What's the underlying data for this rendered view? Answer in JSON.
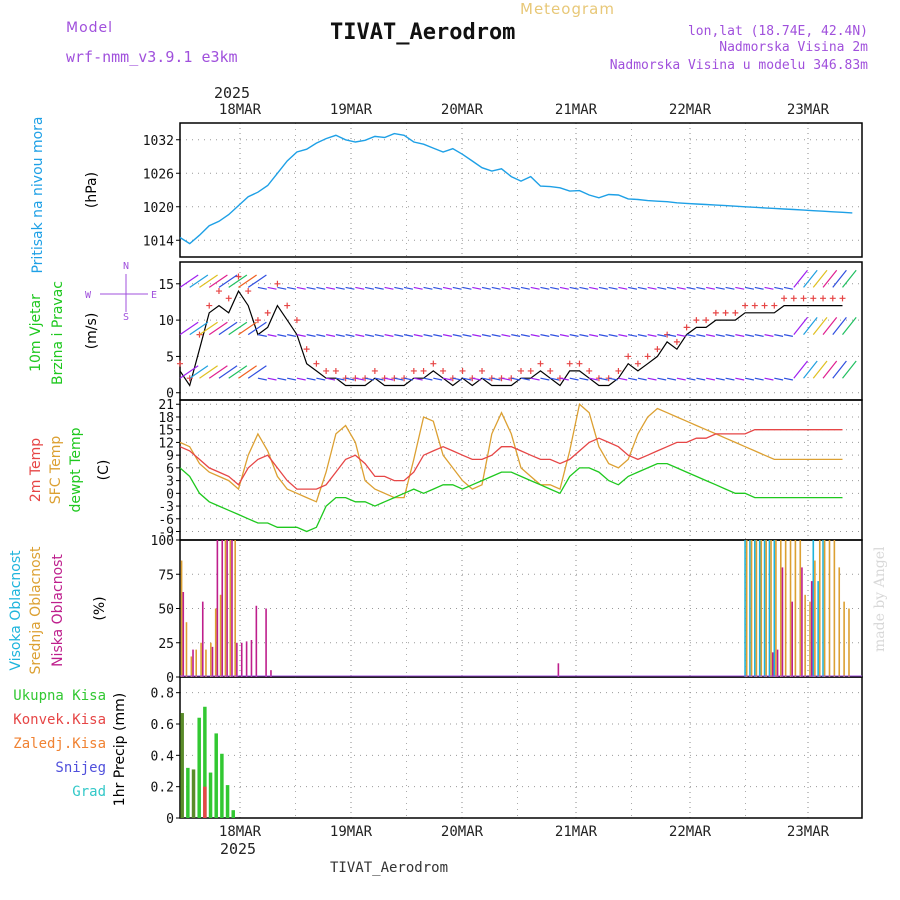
{
  "header": {
    "model_label": "Model",
    "model_name": "wrf-nmm_v3.9.1  e3km",
    "title": "TIVAT_Aerodrom",
    "subtitle": "Meteogram",
    "lonlat": "lon,lat (18.74E, 42.4N)",
    "altitude": "Nadmorska Visina 2m",
    "model_altitude": "Nadmorska Visina u modelu 346.83m",
    "footer_station": "TIVAT_Aerodrom",
    "credit": "made by Angel"
  },
  "colors": {
    "pressure": "#1ea0e6",
    "wind_black": "#000000",
    "gust": "#e64646",
    "t2m": "#e64646",
    "sfc": "#dca032",
    "dewpt": "#1ec81e",
    "cloud_high": "#1eb4dc",
    "cloud_mid": "#dca032",
    "cloud_low": "#be1e8c",
    "precip_total": "#32c832",
    "precip_conv": "#e64646",
    "precip_frozen": "#f08232",
    "snow": "#5050dc",
    "hail": "#32c8c8",
    "model_text": "#a050dc"
  },
  "chart_data": [
    {
      "type": "line",
      "id": "pressure",
      "ylabel_side": "Pritisak na nivou mora",
      "unit": "(hPa)",
      "ylim": [
        1011,
        1035
      ],
      "yticks": [
        1014,
        1020,
        1026,
        1032
      ],
      "x": [
        0,
        2,
        4,
        6,
        8,
        10,
        12,
        14,
        16,
        18,
        20,
        22,
        24,
        26,
        28,
        30,
        32,
        34,
        36,
        38,
        40,
        42,
        44,
        46,
        48,
        50,
        52,
        54,
        56,
        58,
        60,
        62,
        64,
        66,
        68,
        70,
        72,
        74,
        76,
        78,
        80,
        82,
        84,
        86,
        88,
        90,
        92,
        94,
        96,
        98,
        100,
        102,
        104,
        106,
        108,
        110,
        112,
        114,
        116,
        118,
        120,
        122,
        124,
        126,
        128,
        130,
        132,
        134,
        136,
        138
      ],
      "values": [
        1014.5,
        1013.4,
        1014.9,
        1016.6,
        1017.4,
        1018.6,
        1020.2,
        1021.8,
        1022.6,
        1023.8,
        1026.0,
        1028.2,
        1029.8,
        1030.3,
        1031.4,
        1032.2,
        1032.8,
        1032.0,
        1031.6,
        1031.9,
        1032.6,
        1032.4,
        1033.1,
        1032.8,
        1031.6,
        1031.2,
        1030.5,
        1029.8,
        1030.4,
        1029.4,
        1028.2,
        1027.0,
        1026.4,
        1026.8,
        1025.4,
        1024.6,
        1025.4,
        1023.7,
        1023.6,
        1023.4,
        1022.8,
        1022.9,
        1022.1,
        1021.6,
        1022.2,
        1022.1,
        1021.4,
        1021.3,
        1021.1,
        1021.0,
        1020.9,
        1020.7,
        1020.6,
        1020.5,
        1020.4,
        1020.3,
        1020.2,
        1020.1,
        1020.0,
        1019.9,
        1019.8,
        1019.7,
        1019.6,
        1019.5,
        1019.4,
        1019.3,
        1019.2,
        1019.1,
        1019.0,
        1018.9
      ]
    },
    {
      "type": "line",
      "id": "wind",
      "ylabel_side": [
        "10m Vjetar",
        "Brzina i Pravac"
      ],
      "unit": "(m/s)",
      "compass": [
        "N",
        "S",
        "W",
        "E"
      ],
      "ylim": [
        -1,
        18
      ],
      "yticks": [
        0,
        5,
        10,
        15
      ],
      "x": [
        0,
        2,
        4,
        6,
        8,
        10,
        12,
        14,
        16,
        18,
        20,
        22,
        24,
        26,
        28,
        30,
        32,
        34,
        36,
        38,
        40,
        42,
        44,
        46,
        48,
        50,
        52,
        54,
        56,
        58,
        60,
        62,
        64,
        66,
        68,
        70,
        72,
        74,
        76,
        78,
        80,
        82,
        84,
        86,
        88,
        90,
        92,
        94,
        96,
        98,
        100,
        102,
        104,
        106,
        108,
        110,
        112,
        114,
        116,
        118,
        120,
        122,
        124,
        126,
        128,
        130,
        132,
        134,
        136
      ],
      "series": [
        {
          "name": "speed",
          "values": [
            3,
            1,
            6,
            11,
            12,
            11,
            14,
            12,
            8,
            9,
            12,
            10,
            8,
            4,
            3,
            2,
            2,
            1,
            1,
            1,
            2,
            1,
            1,
            1,
            2,
            2,
            3,
            2,
            1,
            2,
            1,
            2,
            1,
            1,
            1,
            2,
            2,
            3,
            2,
            1,
            3,
            3,
            2,
            1,
            1,
            2,
            4,
            3,
            4,
            5,
            7,
            6,
            8,
            9,
            9,
            10,
            10,
            10,
            11,
            11,
            11,
            11,
            12,
            12,
            12,
            12,
            12,
            12,
            12
          ]
        },
        {
          "name": "gust",
          "values": [
            4,
            2,
            8,
            12,
            14,
            13,
            16,
            14,
            10,
            11,
            15,
            12,
            10,
            6,
            4,
            3,
            3,
            2,
            2,
            2,
            3,
            2,
            2,
            2,
            3,
            3,
            4,
            3,
            2,
            3,
            2,
            3,
            2,
            2,
            2,
            3,
            3,
            4,
            3,
            2,
            4,
            4,
            3,
            2,
            2,
            3,
            5,
            4,
            5,
            6,
            8,
            7,
            9,
            10,
            10,
            11,
            11,
            11,
            12,
            12,
            12,
            12,
            13,
            13,
            13,
            13,
            13,
            13,
            13
          ]
        }
      ],
      "barb_levels": [
        2,
        8,
        14.5
      ]
    },
    {
      "type": "line",
      "id": "temperature",
      "ylabel_side": [
        "2m Temp",
        "SFC Temp",
        "dewpt Temp"
      ],
      "unit": "(C)",
      "ylim": [
        -11,
        22
      ],
      "yticks": [
        -9,
        -6,
        -3,
        0,
        3,
        6,
        9,
        12,
        15,
        18,
        21
      ],
      "x": [
        0,
        2,
        4,
        6,
        8,
        10,
        12,
        14,
        16,
        18,
        20,
        22,
        24,
        26,
        28,
        30,
        32,
        34,
        36,
        38,
        40,
        42,
        44,
        46,
        48,
        50,
        52,
        54,
        56,
        58,
        60,
        62,
        64,
        66,
        68,
        70,
        72,
        74,
        76,
        78,
        80,
        82,
        84,
        86,
        88,
        90,
        92,
        94,
        96,
        98,
        100,
        102,
        104,
        106,
        108,
        110,
        112,
        114,
        116,
        118,
        120,
        122,
        124,
        126,
        128,
        130,
        132,
        134,
        136
      ],
      "series": [
        {
          "name": "2m",
          "values": [
            11,
            10,
            8,
            6,
            5,
            4,
            2,
            6,
            8,
            9,
            6,
            3,
            1,
            1,
            1,
            2,
            5,
            8,
            9,
            7,
            4,
            4,
            3,
            3,
            5,
            9,
            10,
            11,
            10,
            9,
            8,
            8,
            9,
            11,
            11,
            10,
            9,
            8,
            8,
            7,
            8,
            10,
            12,
            13,
            12,
            11,
            9,
            8,
            9,
            10,
            11,
            12,
            12,
            13,
            13,
            14,
            14,
            14,
            14,
            15,
            15,
            15,
            15,
            15,
            15,
            15,
            15,
            15,
            15
          ]
        },
        {
          "name": "sfc",
          "values": [
            12,
            11,
            7,
            5,
            4,
            3,
            1,
            9,
            14,
            10,
            4,
            1,
            0,
            -1,
            -2,
            5,
            14,
            16,
            12,
            3,
            1,
            0,
            -1,
            -1,
            8,
            18,
            17,
            9,
            6,
            3,
            1,
            2,
            14,
            19,
            14,
            6,
            4,
            2,
            2,
            1,
            10,
            21,
            19,
            11,
            7,
            6,
            8,
            14,
            18,
            20,
            19,
            18,
            17,
            16,
            15,
            14,
            13,
            12,
            11,
            10,
            9,
            8,
            8,
            8,
            8,
            8,
            8,
            8,
            8
          ]
        },
        {
          "name": "dewpt",
          "values": [
            6,
            4,
            0,
            -2,
            -3,
            -4,
            -5,
            -6,
            -7,
            -7,
            -8,
            -8,
            -8,
            -9,
            -8,
            -3,
            -1,
            -1,
            -2,
            -2,
            -3,
            -2,
            -1,
            0,
            1,
            0,
            1,
            2,
            2,
            1,
            2,
            3,
            4,
            5,
            5,
            4,
            3,
            2,
            1,
            0,
            4,
            6,
            6,
            5,
            3,
            2,
            4,
            5,
            6,
            7,
            7,
            6,
            5,
            4,
            3,
            2,
            1,
            0,
            0,
            -1,
            -1,
            -1,
            -1,
            -1,
            -1,
            -1,
            -1,
            -1,
            -1
          ]
        }
      ]
    },
    {
      "type": "bar",
      "id": "clouds",
      "ylabel_side": [
        "Visoka Oblacnost",
        "Srednja Oblacnost",
        "Niska Oblacnost"
      ],
      "unit": "(%)",
      "ylim": [
        0,
        100
      ],
      "yticks": [
        0,
        25,
        50,
        75,
        100
      ],
      "series": [
        {
          "name": "high",
          "x": [
            116,
            117,
            118,
            119,
            120,
            121,
            122,
            130,
            131,
            132
          ],
          "values": [
            100,
            100,
            100,
            100,
            100,
            100,
            100,
            100,
            70,
            100
          ]
        },
        {
          "name": "mid",
          "x": [
            0,
            1,
            2,
            3,
            4,
            5,
            6,
            7,
            8,
            9,
            10,
            11,
            116,
            117,
            118,
            119,
            120,
            121,
            122,
            123,
            124,
            125,
            126,
            127,
            128,
            129,
            130,
            131,
            132,
            133,
            134,
            135,
            136,
            137
          ],
          "values": [
            85,
            40,
            15,
            20,
            25,
            20,
            25,
            50,
            60,
            100,
            100,
            100,
            100,
            100,
            100,
            100,
            100,
            100,
            100,
            100,
            100,
            100,
            100,
            100,
            60,
            55,
            85,
            100,
            100,
            100,
            100,
            80,
            55,
            50
          ]
        },
        {
          "name": "low",
          "x": [
            1,
            2,
            3,
            4,
            5,
            6,
            7,
            8,
            9,
            10,
            11,
            12,
            13,
            14,
            15,
            16,
            17,
            18,
            19,
            20,
            21,
            75,
            76,
            77,
            78,
            122,
            123,
            124,
            125,
            126,
            127,
            128,
            129,
            130,
            131
          ],
          "values": [
            62,
            0,
            20,
            0,
            55,
            0,
            22,
            100,
            100,
            100,
            100,
            25,
            25,
            26,
            27,
            52,
            0,
            50,
            5,
            0,
            0,
            0,
            0,
            0,
            10,
            18,
            20,
            80,
            0,
            55,
            0,
            80,
            0,
            70,
            0
          ]
        }
      ]
    },
    {
      "type": "bar",
      "id": "precip",
      "legend": [
        "Ukupna  Kisa",
        "Konvek.Kisa",
        "Zaledj.Kisa",
        "Snijeg",
        "Grad"
      ],
      "unit": "1hr Precip (mm)",
      "ylim": [
        0,
        0.9
      ],
      "yticks": [
        0,
        0.2,
        0.4,
        0.6,
        0.8
      ],
      "x": [
        0,
        1,
        2,
        3,
        4,
        5,
        6,
        7,
        8,
        9
      ],
      "series": [
        {
          "name": "total",
          "values": [
            0.67,
            0.32,
            0.31,
            0.64,
            0.71,
            0.29,
            0.54,
            0.41,
            0.21,
            0.05
          ]
        },
        {
          "name": "conv",
          "values": [
            0.0,
            0.0,
            0.0,
            0.0,
            0.2,
            0.0,
            0.0,
            0.0,
            0.0,
            0.0
          ]
        }
      ]
    }
  ],
  "axis": {
    "year": "2025",
    "days": [
      "18MAR",
      "19MAR",
      "20MAR",
      "21MAR",
      "22MAR",
      "23MAR"
    ],
    "x_total_hours": 140
  }
}
